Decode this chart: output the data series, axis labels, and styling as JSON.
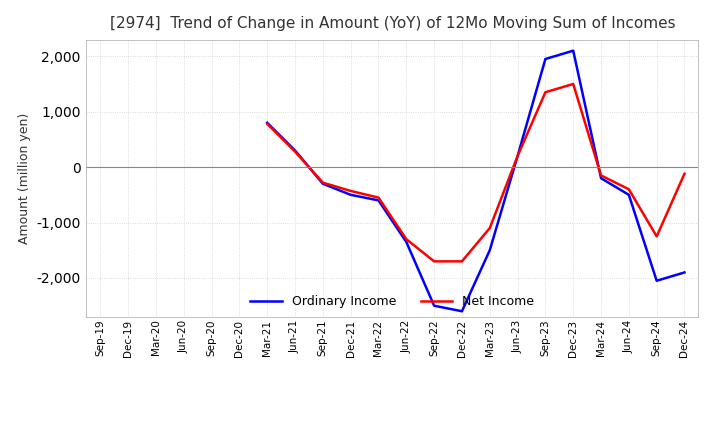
{
  "title": "[2974]  Trend of Change in Amount (YoY) of 12Mo Moving Sum of Incomes",
  "ylabel": "Amount (million yen)",
  "ylim": [
    -2700,
    2300
  ],
  "yticks": [
    -2000,
    -1000,
    0,
    1000,
    2000
  ],
  "x_labels": [
    "Sep-19",
    "Dec-19",
    "Mar-20",
    "Jun-20",
    "Sep-20",
    "Dec-20",
    "Mar-21",
    "Jun-21",
    "Sep-21",
    "Dec-21",
    "Mar-22",
    "Jun-22",
    "Sep-22",
    "Dec-22",
    "Mar-23",
    "Jun-23",
    "Sep-23",
    "Dec-23",
    "Mar-24",
    "Jun-24",
    "Sep-24",
    "Dec-24"
  ],
  "ordinary_income": [
    null,
    null,
    null,
    null,
    null,
    null,
    800,
    300,
    -300,
    -500,
    -600,
    -1350,
    -2500,
    -2600,
    -1500,
    200,
    1950,
    2100,
    -200,
    -500,
    -2050,
    -1900
  ],
  "net_income": [
    null,
    null,
    null,
    null,
    null,
    null,
    780,
    280,
    -280,
    -430,
    -550,
    -1300,
    -1700,
    -1700,
    -1100,
    200,
    1350,
    1500,
    -150,
    -400,
    -1250,
    -120
  ],
  "ordinary_color": "#0000ff",
  "net_color": "#ff0000",
  "legend_labels": [
    "Ordinary Income",
    "Net Income"
  ],
  "background_color": "#ffffff",
  "grid_color": "#d0d0d0",
  "grid_style": "dotted"
}
